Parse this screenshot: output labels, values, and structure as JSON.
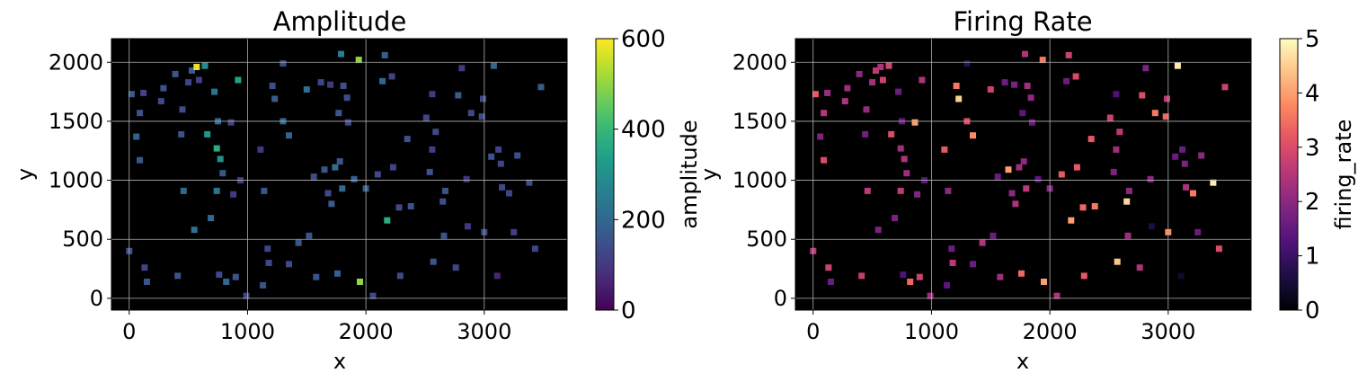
{
  "chart_data": [
    {
      "type": "heatmap",
      "title": "Amplitude",
      "xlabel": "x",
      "ylabel": "y",
      "xlim": [
        -150,
        3700
      ],
      "ylim": [
        -100,
        2200
      ],
      "xticks": [
        0,
        1000,
        2000,
        3000
      ],
      "yticks": [
        0,
        500,
        1000,
        1500,
        2000
      ],
      "grid": true,
      "colormap": "viridis",
      "colorbar": {
        "label": "amplitude",
        "min": 0,
        "max": 600,
        "ticks": [
          0,
          200,
          400,
          600
        ]
      },
      "points": [
        {
          "x": 0,
          "y": 400,
          "v": 150
        },
        {
          "x": 20,
          "y": 1730,
          "v": 170
        },
        {
          "x": 60,
          "y": 1370,
          "v": 180
        },
        {
          "x": 90,
          "y": 1570,
          "v": 150
        },
        {
          "x": 90,
          "y": 1170,
          "v": 160
        },
        {
          "x": 120,
          "y": 1740,
          "v": 120
        },
        {
          "x": 130,
          "y": 260,
          "v": 120
        },
        {
          "x": 150,
          "y": 140,
          "v": 160
        },
        {
          "x": 270,
          "y": 1670,
          "v": 130
        },
        {
          "x": 290,
          "y": 1780,
          "v": 150
        },
        {
          "x": 390,
          "y": 1900,
          "v": 160
        },
        {
          "x": 410,
          "y": 190,
          "v": 150
        },
        {
          "x": 440,
          "y": 1390,
          "v": 150
        },
        {
          "x": 450,
          "y": 1600,
          "v": 140
        },
        {
          "x": 460,
          "y": 910,
          "v": 200
        },
        {
          "x": 500,
          "y": 1830,
          "v": 120
        },
        {
          "x": 530,
          "y": 1930,
          "v": 170
        },
        {
          "x": 550,
          "y": 580,
          "v": 220
        },
        {
          "x": 570,
          "y": 1960,
          "v": 580
        },
        {
          "x": 590,
          "y": 1850,
          "v": 110
        },
        {
          "x": 640,
          "y": 1970,
          "v": 290
        },
        {
          "x": 660,
          "y": 1390,
          "v": 320
        },
        {
          "x": 690,
          "y": 680,
          "v": 200
        },
        {
          "x": 720,
          "y": 1750,
          "v": 230
        },
        {
          "x": 740,
          "y": 1270,
          "v": 370
        },
        {
          "x": 740,
          "y": 910,
          "v": 230
        },
        {
          "x": 750,
          "y": 1500,
          "v": 200
        },
        {
          "x": 760,
          "y": 200,
          "v": 130
        },
        {
          "x": 770,
          "y": 1180,
          "v": 300
        },
        {
          "x": 790,
          "y": 1060,
          "v": 160
        },
        {
          "x": 820,
          "y": 140,
          "v": 200
        },
        {
          "x": 860,
          "y": 1490,
          "v": 120
        },
        {
          "x": 880,
          "y": 880,
          "v": 100
        },
        {
          "x": 900,
          "y": 180,
          "v": 150
        },
        {
          "x": 920,
          "y": 1850,
          "v": 340
        },
        {
          "x": 940,
          "y": 1000,
          "v": 110
        },
        {
          "x": 990,
          "y": 20,
          "v": 120
        },
        {
          "x": 1110,
          "y": 1260,
          "v": 90
        },
        {
          "x": 1130,
          "y": 110,
          "v": 150
        },
        {
          "x": 1140,
          "y": 910,
          "v": 160
        },
        {
          "x": 1170,
          "y": 420,
          "v": 120
        },
        {
          "x": 1180,
          "y": 300,
          "v": 130
        },
        {
          "x": 1210,
          "y": 1800,
          "v": 140
        },
        {
          "x": 1230,
          "y": 1690,
          "v": 170
        },
        {
          "x": 1300,
          "y": 1990,
          "v": 140
        },
        {
          "x": 1300,
          "y": 1500,
          "v": 200
        },
        {
          "x": 1350,
          "y": 1380,
          "v": 180
        },
        {
          "x": 1350,
          "y": 290,
          "v": 130
        },
        {
          "x": 1430,
          "y": 470,
          "v": 160
        },
        {
          "x": 1500,
          "y": 1770,
          "v": 210
        },
        {
          "x": 1520,
          "y": 530,
          "v": 150
        },
        {
          "x": 1560,
          "y": 1030,
          "v": 140
        },
        {
          "x": 1580,
          "y": 180,
          "v": 160
        },
        {
          "x": 1620,
          "y": 1830,
          "v": 120
        },
        {
          "x": 1650,
          "y": 1090,
          "v": 160
        },
        {
          "x": 1680,
          "y": 890,
          "v": 130
        },
        {
          "x": 1700,
          "y": 1810,
          "v": 100
        },
        {
          "x": 1710,
          "y": 800,
          "v": 170
        },
        {
          "x": 1740,
          "y": 1110,
          "v": 220
        },
        {
          "x": 1760,
          "y": 210,
          "v": 180
        },
        {
          "x": 1770,
          "y": 1570,
          "v": 160
        },
        {
          "x": 1780,
          "y": 1160,
          "v": 160
        },
        {
          "x": 1790,
          "y": 2070,
          "v": 250
        },
        {
          "x": 1800,
          "y": 930,
          "v": 200
        },
        {
          "x": 1810,
          "y": 1800,
          "v": 150
        },
        {
          "x": 1840,
          "y": 1700,
          "v": 140
        },
        {
          "x": 1850,
          "y": 1490,
          "v": 130
        },
        {
          "x": 1900,
          "y": 1010,
          "v": 180
        },
        {
          "x": 1940,
          "y": 2020,
          "v": 500
        },
        {
          "x": 1950,
          "y": 140,
          "v": 500
        },
        {
          "x": 2000,
          "y": 930,
          "v": 180
        },
        {
          "x": 2060,
          "y": 20,
          "v": 130
        },
        {
          "x": 2100,
          "y": 1050,
          "v": 130
        },
        {
          "x": 2140,
          "y": 1840,
          "v": 200
        },
        {
          "x": 2160,
          "y": 2060,
          "v": 180
        },
        {
          "x": 2180,
          "y": 660,
          "v": 370
        },
        {
          "x": 2220,
          "y": 1880,
          "v": 120
        },
        {
          "x": 2230,
          "y": 1110,
          "v": 120
        },
        {
          "x": 2280,
          "y": 770,
          "v": 130
        },
        {
          "x": 2290,
          "y": 190,
          "v": 130
        },
        {
          "x": 2350,
          "y": 1350,
          "v": 150
        },
        {
          "x": 2380,
          "y": 780,
          "v": 150
        },
        {
          "x": 2510,
          "y": 1530,
          "v": 120
        },
        {
          "x": 2540,
          "y": 1070,
          "v": 150
        },
        {
          "x": 2560,
          "y": 1260,
          "v": 110
        },
        {
          "x": 2560,
          "y": 1730,
          "v": 100
        },
        {
          "x": 2570,
          "y": 310,
          "v": 150
        },
        {
          "x": 2590,
          "y": 1410,
          "v": 130
        },
        {
          "x": 2650,
          "y": 820,
          "v": 140
        },
        {
          "x": 2660,
          "y": 530,
          "v": 150
        },
        {
          "x": 2670,
          "y": 910,
          "v": 160
        },
        {
          "x": 2760,
          "y": 260,
          "v": 120
        },
        {
          "x": 2780,
          "y": 1720,
          "v": 170
        },
        {
          "x": 2810,
          "y": 1950,
          "v": 100
        },
        {
          "x": 2850,
          "y": 1010,
          "v": 90
        },
        {
          "x": 2860,
          "y": 610,
          "v": 100
        },
        {
          "x": 2890,
          "y": 1570,
          "v": 130
        },
        {
          "x": 2980,
          "y": 1540,
          "v": 140
        },
        {
          "x": 2990,
          "y": 1690,
          "v": 140
        },
        {
          "x": 3000,
          "y": 560,
          "v": 140
        },
        {
          "x": 3060,
          "y": 1200,
          "v": 150
        },
        {
          "x": 3080,
          "y": 1970,
          "v": 200
        },
        {
          "x": 3110,
          "y": 190,
          "v": 60
        },
        {
          "x": 3120,
          "y": 1260,
          "v": 120
        },
        {
          "x": 3140,
          "y": 1140,
          "v": 120
        },
        {
          "x": 3150,
          "y": 940,
          "v": 130
        },
        {
          "x": 3210,
          "y": 890,
          "v": 120
        },
        {
          "x": 3250,
          "y": 560,
          "v": 110
        },
        {
          "x": 3280,
          "y": 1210,
          "v": 140
        },
        {
          "x": 3380,
          "y": 980,
          "v": 140
        },
        {
          "x": 3430,
          "y": 420,
          "v": 120
        },
        {
          "x": 3480,
          "y": 1790,
          "v": 170
        }
      ]
    },
    {
      "type": "heatmap",
      "title": "Firing Rate",
      "xlabel": "x",
      "ylabel": "y",
      "xlim": [
        -150,
        3700
      ],
      "ylim": [
        -100,
        2200
      ],
      "xticks": [
        0,
        1000,
        2000,
        3000
      ],
      "yticks": [
        0,
        500,
        1000,
        1500,
        2000
      ],
      "grid": true,
      "colormap": "magma",
      "colorbar": {
        "label": "firing_rate",
        "min": 0,
        "max": 5,
        "ticks": [
          0,
          1,
          2,
          3,
          4,
          5
        ]
      },
      "points": [
        {
          "x": 0,
          "y": 400,
          "v": 2.6
        },
        {
          "x": 20,
          "y": 1730,
          "v": 3.2
        },
        {
          "x": 60,
          "y": 1370,
          "v": 1.8
        },
        {
          "x": 90,
          "y": 1570,
          "v": 2.5
        },
        {
          "x": 90,
          "y": 1170,
          "v": 3.0
        },
        {
          "x": 120,
          "y": 1740,
          "v": 2.2
        },
        {
          "x": 130,
          "y": 260,
          "v": 2.8
        },
        {
          "x": 150,
          "y": 140,
          "v": 1.6
        },
        {
          "x": 270,
          "y": 1670,
          "v": 2.4
        },
        {
          "x": 290,
          "y": 1780,
          "v": 2.2
        },
        {
          "x": 390,
          "y": 1900,
          "v": 2.0
        },
        {
          "x": 410,
          "y": 190,
          "v": 2.7
        },
        {
          "x": 440,
          "y": 1390,
          "v": 1.7
        },
        {
          "x": 450,
          "y": 1600,
          "v": 2.1
        },
        {
          "x": 460,
          "y": 910,
          "v": 2.6
        },
        {
          "x": 500,
          "y": 1830,
          "v": 2.3
        },
        {
          "x": 530,
          "y": 1930,
          "v": 2.6
        },
        {
          "x": 550,
          "y": 580,
          "v": 1.8
        },
        {
          "x": 570,
          "y": 1960,
          "v": 2.4
        },
        {
          "x": 590,
          "y": 1850,
          "v": 2.8
        },
        {
          "x": 640,
          "y": 1970,
          "v": 2.9
        },
        {
          "x": 660,
          "y": 1390,
          "v": 3.0
        },
        {
          "x": 690,
          "y": 680,
          "v": 1.8
        },
        {
          "x": 720,
          "y": 1750,
          "v": 1.6
        },
        {
          "x": 740,
          "y": 1270,
          "v": 2.2
        },
        {
          "x": 740,
          "y": 910,
          "v": 2.6
        },
        {
          "x": 750,
          "y": 1500,
          "v": 1.5
        },
        {
          "x": 760,
          "y": 200,
          "v": 1.2
        },
        {
          "x": 770,
          "y": 1180,
          "v": 2.4
        },
        {
          "x": 790,
          "y": 1060,
          "v": 2.2
        },
        {
          "x": 820,
          "y": 140,
          "v": 3.4
        },
        {
          "x": 860,
          "y": 1490,
          "v": 4.0
        },
        {
          "x": 880,
          "y": 880,
          "v": 1.9
        },
        {
          "x": 900,
          "y": 180,
          "v": 2.8
        },
        {
          "x": 920,
          "y": 1850,
          "v": 2.4
        },
        {
          "x": 940,
          "y": 1000,
          "v": 1.4
        },
        {
          "x": 990,
          "y": 20,
          "v": 2.2
        },
        {
          "x": 1110,
          "y": 1260,
          "v": 3.2
        },
        {
          "x": 1130,
          "y": 110,
          "v": 1.4
        },
        {
          "x": 1140,
          "y": 910,
          "v": 2.0
        },
        {
          "x": 1170,
          "y": 420,
          "v": 1.6
        },
        {
          "x": 1180,
          "y": 300,
          "v": 2.6
        },
        {
          "x": 1210,
          "y": 1800,
          "v": 3.6
        },
        {
          "x": 1230,
          "y": 1690,
          "v": 4.5
        },
        {
          "x": 1300,
          "y": 1990,
          "v": 0.8
        },
        {
          "x": 1300,
          "y": 1500,
          "v": 3.0
        },
        {
          "x": 1350,
          "y": 1380,
          "v": 3.8
        },
        {
          "x": 1350,
          "y": 290,
          "v": 1.6
        },
        {
          "x": 1430,
          "y": 470,
          "v": 2.4
        },
        {
          "x": 1500,
          "y": 1770,
          "v": 2.8
        },
        {
          "x": 1520,
          "y": 530,
          "v": 1.6
        },
        {
          "x": 1560,
          "y": 1030,
          "v": 1.6
        },
        {
          "x": 1580,
          "y": 180,
          "v": 2.2
        },
        {
          "x": 1620,
          "y": 1830,
          "v": 1.6
        },
        {
          "x": 1650,
          "y": 1090,
          "v": 4.0
        },
        {
          "x": 1680,
          "y": 890,
          "v": 2.0
        },
        {
          "x": 1700,
          "y": 1810,
          "v": 1.8
        },
        {
          "x": 1710,
          "y": 800,
          "v": 2.4
        },
        {
          "x": 1740,
          "y": 1110,
          "v": 2.2
        },
        {
          "x": 1760,
          "y": 210,
          "v": 3.4
        },
        {
          "x": 1770,
          "y": 1570,
          "v": 1.4
        },
        {
          "x": 1780,
          "y": 1160,
          "v": 2.0
        },
        {
          "x": 1790,
          "y": 2070,
          "v": 2.4
        },
        {
          "x": 1800,
          "y": 930,
          "v": 2.6
        },
        {
          "x": 1810,
          "y": 1800,
          "v": 2.2
        },
        {
          "x": 1840,
          "y": 1700,
          "v": 2.0
        },
        {
          "x": 1850,
          "y": 1490,
          "v": 1.6
        },
        {
          "x": 1900,
          "y": 1010,
          "v": 1.4
        },
        {
          "x": 1940,
          "y": 2020,
          "v": 3.6
        },
        {
          "x": 1950,
          "y": 140,
          "v": 4.0
        },
        {
          "x": 2000,
          "y": 930,
          "v": 2.0
        },
        {
          "x": 2060,
          "y": 20,
          "v": 2.4
        },
        {
          "x": 2100,
          "y": 1050,
          "v": 3.2
        },
        {
          "x": 2140,
          "y": 1840,
          "v": 1.6
        },
        {
          "x": 2160,
          "y": 2060,
          "v": 2.8
        },
        {
          "x": 2180,
          "y": 660,
          "v": 4.0
        },
        {
          "x": 2220,
          "y": 1880,
          "v": 3.0
        },
        {
          "x": 2230,
          "y": 1110,
          "v": 3.2
        },
        {
          "x": 2280,
          "y": 770,
          "v": 3.4
        },
        {
          "x": 2290,
          "y": 190,
          "v": 3.2
        },
        {
          "x": 2350,
          "y": 1350,
          "v": 3.2
        },
        {
          "x": 2380,
          "y": 780,
          "v": 3.6
        },
        {
          "x": 2510,
          "y": 1530,
          "v": 2.8
        },
        {
          "x": 2540,
          "y": 1070,
          "v": 1.8
        },
        {
          "x": 2560,
          "y": 1260,
          "v": 2.2
        },
        {
          "x": 2560,
          "y": 1730,
          "v": 1.2
        },
        {
          "x": 2570,
          "y": 310,
          "v": 4.4
        },
        {
          "x": 2590,
          "y": 1410,
          "v": 2.6
        },
        {
          "x": 2650,
          "y": 820,
          "v": 4.6
        },
        {
          "x": 2660,
          "y": 530,
          "v": 2.2
        },
        {
          "x": 2670,
          "y": 910,
          "v": 2.0
        },
        {
          "x": 2760,
          "y": 260,
          "v": 2.4
        },
        {
          "x": 2780,
          "y": 1720,
          "v": 3.0
        },
        {
          "x": 2810,
          "y": 1950,
          "v": 1.8
        },
        {
          "x": 2850,
          "y": 1010,
          "v": 2.0
        },
        {
          "x": 2860,
          "y": 610,
          "v": 0.6
        },
        {
          "x": 2890,
          "y": 1570,
          "v": 3.6
        },
        {
          "x": 2980,
          "y": 1540,
          "v": 3.4
        },
        {
          "x": 2990,
          "y": 1690,
          "v": 2.6
        },
        {
          "x": 3000,
          "y": 560,
          "v": 3.8
        },
        {
          "x": 3060,
          "y": 1200,
          "v": 1.6
        },
        {
          "x": 3080,
          "y": 1970,
          "v": 4.8
        },
        {
          "x": 3110,
          "y": 190,
          "v": 0.4
        },
        {
          "x": 3120,
          "y": 1260,
          "v": 1.6
        },
        {
          "x": 3140,
          "y": 1140,
          "v": 1.8
        },
        {
          "x": 3150,
          "y": 940,
          "v": 2.4
        },
        {
          "x": 3210,
          "y": 890,
          "v": 3.6
        },
        {
          "x": 3250,
          "y": 560,
          "v": 1.6
        },
        {
          "x": 3280,
          "y": 1210,
          "v": 2.0
        },
        {
          "x": 3380,
          "y": 980,
          "v": 4.8
        },
        {
          "x": 3430,
          "y": 420,
          "v": 3.0
        },
        {
          "x": 3480,
          "y": 1790,
          "v": 2.8
        }
      ]
    }
  ]
}
